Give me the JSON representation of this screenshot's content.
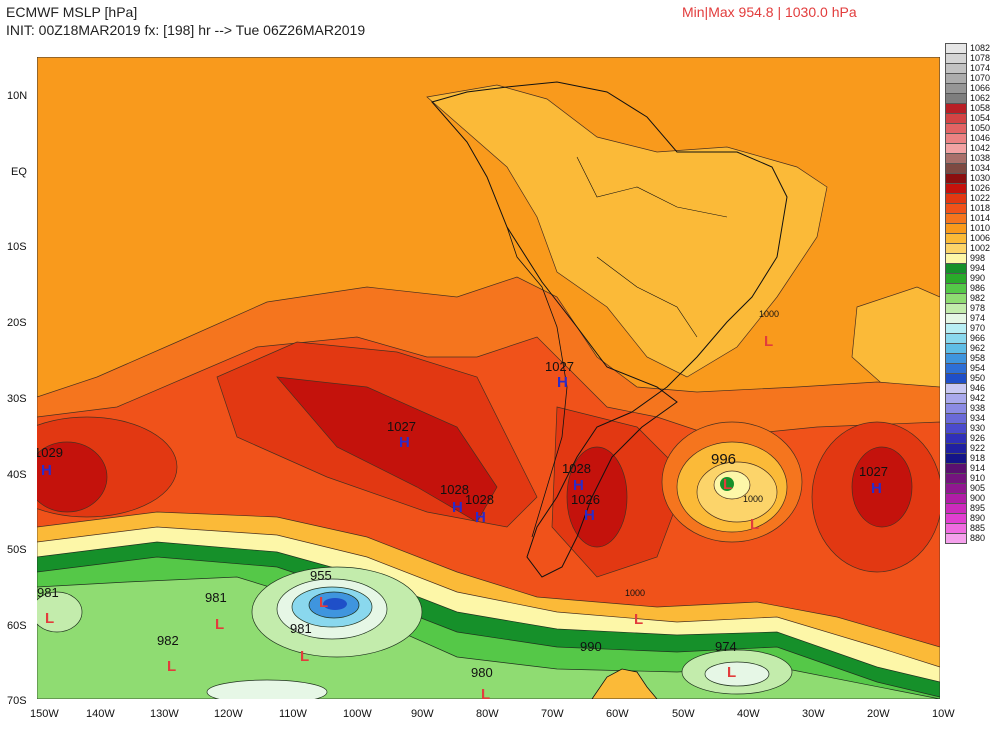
{
  "header": {
    "title": "ECMWF MSLP [hPa]",
    "init": "INIT: 00Z18MAR2019 fx: [198] hr --> Tue 06Z26MAR2019",
    "minmax": "Min|Max 954.8 | 1030.0 hPa"
  },
  "axes": {
    "lat_labels": [
      "10N",
      "EQ",
      "10S",
      "20S",
      "30S",
      "40S",
      "50S",
      "60S",
      "70S"
    ],
    "lon_labels": [
      "150W",
      "140W",
      "130W",
      "120W",
      "110W",
      "100W",
      "90W",
      "80W",
      "70W",
      "60W",
      "50W",
      "40W",
      "30W",
      "20W",
      "10W"
    ]
  },
  "pressure_centers": [
    {
      "type": "H",
      "value": "1029"
    },
    {
      "type": "H",
      "value": "1027"
    },
    {
      "type": "H",
      "value": "1028"
    },
    {
      "type": "H",
      "value": "1028"
    },
    {
      "type": "H",
      "value": "1027"
    },
    {
      "type": "H",
      "value": "1028"
    },
    {
      "type": "H",
      "value": "1026"
    },
    {
      "type": "H",
      "value": "1027"
    },
    {
      "type": "L",
      "value": "996"
    },
    {
      "type": "L",
      "value": "1000"
    },
    {
      "type": "L",
      "value": "1000"
    },
    {
      "type": "L",
      "value": "981"
    },
    {
      "type": "L",
      "value": "981"
    },
    {
      "type": "L",
      "value": "955"
    },
    {
      "type": "L",
      "value": "981"
    },
    {
      "type": "L",
      "value": "982"
    },
    {
      "type": "L",
      "value": "990"
    },
    {
      "type": "L",
      "value": "980"
    },
    {
      "type": "L",
      "value": "974"
    },
    {
      "type": "L",
      "value": "1000"
    }
  ],
  "colorbar": [
    {
      "label": "1082",
      "color": "#e6e6e6"
    },
    {
      "label": "1078",
      "color": "#d4d4d4"
    },
    {
      "label": "1074",
      "color": "#c2c2c2"
    },
    {
      "label": "1070",
      "color": "#acacac"
    },
    {
      "label": "1066",
      "color": "#969696"
    },
    {
      "label": "1062",
      "color": "#7e7e7e"
    },
    {
      "label": "1058",
      "color": "#b81f25"
    },
    {
      "label": "1054",
      "color": "#d34444"
    },
    {
      "label": "1050",
      "color": "#e26464"
    },
    {
      "label": "1046",
      "color": "#eb8383"
    },
    {
      "label": "1042",
      "color": "#f2a3a3"
    },
    {
      "label": "1038",
      "color": "#a9706a"
    },
    {
      "label": "1034",
      "color": "#7e4a42"
    },
    {
      "label": "1030",
      "color": "#8b0f0f"
    },
    {
      "label": "1026",
      "color": "#c4120c"
    },
    {
      "label": "1022",
      "color": "#e23812"
    },
    {
      "label": "1018",
      "color": "#f0521a"
    },
    {
      "label": "1014",
      "color": "#f5751e"
    },
    {
      "label": "1010",
      "color": "#f99a1c"
    },
    {
      "label": "1006",
      "color": "#fbba38"
    },
    {
      "label": "1002",
      "color": "#fcd46a"
    },
    {
      "label": "998",
      "color": "#fdf7a8"
    },
    {
      "label": "994",
      "color": "#16902a"
    },
    {
      "label": "990",
      "color": "#2aaa2a"
    },
    {
      "label": "986",
      "color": "#55c848"
    },
    {
      "label": "982",
      "color": "#8fdc72"
    },
    {
      "label": "978",
      "color": "#c3ecac"
    },
    {
      "label": "974",
      "color": "#e6f7e6"
    },
    {
      "label": "970",
      "color": "#b8eef4"
    },
    {
      "label": "966",
      "color": "#8ad8ee"
    },
    {
      "label": "962",
      "color": "#5fbde6"
    },
    {
      "label": "958",
      "color": "#3f95de"
    },
    {
      "label": "954",
      "color": "#2e6fd6"
    },
    {
      "label": "950",
      "color": "#1f4fc8"
    },
    {
      "label": "946",
      "color": "#c9c9f2"
    },
    {
      "label": "942",
      "color": "#a9a9ec"
    },
    {
      "label": "938",
      "color": "#8b8be4"
    },
    {
      "label": "934",
      "color": "#6a6ad8"
    },
    {
      "label": "930",
      "color": "#4b4bcc"
    },
    {
      "label": "926",
      "color": "#3030b8"
    },
    {
      "label": "922",
      "color": "#2020a0"
    },
    {
      "label": "918",
      "color": "#141488"
    },
    {
      "label": "914",
      "color": "#5a1070"
    },
    {
      "label": "910",
      "color": "#74147e"
    },
    {
      "label": "905",
      "color": "#901890"
    },
    {
      "label": "900",
      "color": "#b01ea6"
    },
    {
      "label": "895",
      "color": "#cc2cbc"
    },
    {
      "label": "890",
      "color": "#e040d0"
    },
    {
      "label": "885",
      "color": "#ef6ce0"
    },
    {
      "label": "880",
      "color": "#f5a0ec"
    }
  ]
}
